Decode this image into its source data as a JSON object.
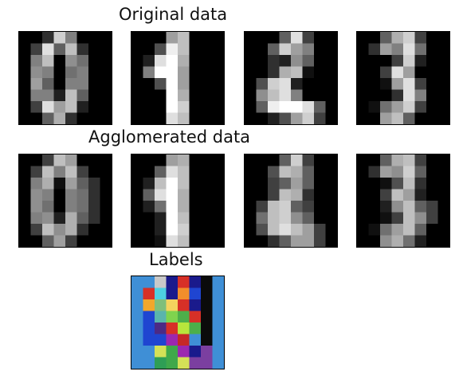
{
  "chart_data": {
    "type": "heatmap",
    "titles": {
      "original": "Original data",
      "agglomerated": "Agglomerated data",
      "labels": "Labels"
    },
    "grid_size": [
      8,
      8
    ],
    "colormap_digits": "gray",
    "original": [
      [
        [
          0,
          0,
          3,
          13,
          8,
          0,
          0,
          0
        ],
        [
          0,
          4,
          14,
          6,
          12,
          3,
          0,
          0
        ],
        [
          0,
          8,
          12,
          0,
          9,
          7,
          0,
          0
        ],
        [
          0,
          9,
          8,
          0,
          7,
          8,
          0,
          0
        ],
        [
          0,
          10,
          6,
          0,
          8,
          8,
          0,
          0
        ],
        [
          0,
          8,
          8,
          2,
          12,
          6,
          0,
          0
        ],
        [
          0,
          4,
          14,
          10,
          12,
          2,
          0,
          0
        ],
        [
          0,
          0,
          6,
          11,
          3,
          0,
          0,
          0
        ]
      ],
      [
        [
          0,
          0,
          0,
          10,
          12,
          0,
          0,
          0
        ],
        [
          0,
          0,
          5,
          15,
          12,
          0,
          0,
          0
        ],
        [
          0,
          2,
          14,
          16,
          11,
          0,
          0,
          0
        ],
        [
          0,
          8,
          16,
          16,
          10,
          0,
          0,
          0
        ],
        [
          0,
          0,
          5,
          16,
          10,
          0,
          0,
          0
        ],
        [
          0,
          0,
          0,
          16,
          11,
          0,
          0,
          0
        ],
        [
          0,
          0,
          0,
          16,
          13,
          0,
          0,
          0
        ],
        [
          0,
          0,
          0,
          14,
          12,
          0,
          0,
          0
        ]
      ],
      [
        [
          0,
          0,
          0,
          6,
          14,
          4,
          0,
          0
        ],
        [
          0,
          0,
          6,
          13,
          10,
          8,
          0,
          0
        ],
        [
          0,
          0,
          3,
          2,
          9,
          6,
          0,
          0
        ],
        [
          0,
          0,
          3,
          11,
          12,
          1,
          0,
          0
        ],
        [
          0,
          5,
          13,
          14,
          2,
          0,
          0,
          0
        ],
        [
          0,
          9,
          12,
          14,
          8,
          0,
          0,
          0
        ],
        [
          0,
          6,
          15,
          16,
          16,
          14,
          6,
          0
        ],
        [
          0,
          0,
          2,
          5,
          10,
          13,
          4,
          0
        ]
      ],
      [
        [
          0,
          0,
          6,
          11,
          13,
          4,
          0,
          0
        ],
        [
          0,
          3,
          10,
          8,
          14,
          7,
          0,
          0
        ],
        [
          0,
          0,
          0,
          4,
          13,
          2,
          0,
          0
        ],
        [
          0,
          0,
          4,
          14,
          10,
          0,
          0,
          0
        ],
        [
          0,
          0,
          1,
          10,
          14,
          4,
          0,
          0
        ],
        [
          0,
          0,
          0,
          3,
          14,
          8,
          0,
          0
        ],
        [
          0,
          1,
          7,
          10,
          13,
          4,
          0,
          0
        ],
        [
          0,
          0,
          10,
          12,
          6,
          0,
          0,
          0
        ]
      ]
    ],
    "agglomerated": [
      [
        [
          0,
          0,
          4,
          12,
          10,
          0,
          0,
          0
        ],
        [
          0,
          4,
          12,
          8,
          12,
          4,
          0,
          0
        ],
        [
          0,
          8,
          11,
          1,
          10,
          6,
          3,
          0
        ],
        [
          0,
          9,
          8,
          0,
          8,
          7,
          3,
          0
        ],
        [
          0,
          9,
          7,
          0,
          8,
          7,
          3,
          0
        ],
        [
          0,
          8,
          9,
          2,
          11,
          6,
          3,
          0
        ],
        [
          0,
          4,
          12,
          9,
          11,
          3,
          0,
          0
        ],
        [
          0,
          0,
          6,
          10,
          4,
          0,
          0,
          0
        ]
      ],
      [
        [
          0,
          0,
          0,
          10,
          11,
          0,
          0,
          0
        ],
        [
          0,
          0,
          6,
          14,
          12,
          0,
          0,
          0
        ],
        [
          0,
          2,
          12,
          16,
          12,
          0,
          0,
          0
        ],
        [
          0,
          6,
          14,
          16,
          11,
          0,
          0,
          0
        ],
        [
          0,
          2,
          7,
          16,
          11,
          0,
          0,
          0
        ],
        [
          0,
          0,
          2,
          16,
          12,
          0,
          0,
          0
        ],
        [
          0,
          0,
          2,
          16,
          13,
          0,
          0,
          0
        ],
        [
          0,
          0,
          1,
          14,
          12,
          0,
          0,
          0
        ]
      ],
      [
        [
          0,
          0,
          0,
          6,
          13,
          4,
          0,
          0
        ],
        [
          0,
          0,
          5,
          12,
          11,
          6,
          0,
          0
        ],
        [
          0,
          0,
          4,
          6,
          10,
          6,
          0,
          0
        ],
        [
          0,
          0,
          4,
          12,
          11,
          3,
          0,
          0
        ],
        [
          0,
          4,
          12,
          13,
          6,
          4,
          0,
          0
        ],
        [
          0,
          7,
          12,
          13,
          9,
          6,
          0,
          0
        ],
        [
          0,
          5,
          12,
          14,
          12,
          10,
          4,
          0
        ],
        [
          0,
          0,
          3,
          6,
          10,
          10,
          4,
          0
        ]
      ],
      [
        [
          0,
          0,
          6,
          11,
          12,
          4,
          0,
          0
        ],
        [
          0,
          3,
          10,
          9,
          13,
          6,
          0,
          0
        ],
        [
          0,
          0,
          1,
          5,
          12,
          3,
          0,
          0
        ],
        [
          0,
          0,
          4,
          12,
          10,
          2,
          0,
          0
        ],
        [
          0,
          0,
          2,
          9,
          12,
          6,
          4,
          0
        ],
        [
          0,
          0,
          1,
          4,
          12,
          9,
          4,
          0
        ],
        [
          0,
          1,
          7,
          10,
          12,
          6,
          0,
          0
        ],
        [
          0,
          0,
          9,
          11,
          7,
          2,
          0,
          0
        ]
      ]
    ],
    "labels_colors": [
      [
        "#3f8fd6",
        "#3f8fd6",
        "#c9c9c9",
        "#1a1a8c",
        "#d73027",
        "#1a1a8c",
        "#0b0b0b",
        "#3f8fd6"
      ],
      [
        "#3f8fd6",
        "#d73027",
        "#4dd0e1",
        "#1a1a8c",
        "#f28e2b",
        "#1f45d1",
        "#0b0b0b",
        "#3f8fd6"
      ],
      [
        "#3f8fd6",
        "#f2a72b",
        "#7fbf7b",
        "#f4d35e",
        "#d73027",
        "#1a1a8c",
        "#0b0b0b",
        "#3f8fd6"
      ],
      [
        "#3f8fd6",
        "#1f45d1",
        "#5ab4ac",
        "#7fd34e",
        "#4daf4a",
        "#d73027",
        "#0b0b0b",
        "#3f8fd6"
      ],
      [
        "#3f8fd6",
        "#1f45d1",
        "#4c2a85",
        "#d73027",
        "#b8e63c",
        "#4daf4a",
        "#0b0b0b",
        "#3f8fd6"
      ],
      [
        "#3f8fd6",
        "#1f45d1",
        "#1f45d1",
        "#9c27b0",
        "#c62828",
        "#3f8fd6",
        "#0b0b0b",
        "#3f8fd6"
      ],
      [
        "#3f8fd6",
        "#3f8fd6",
        "#d4e157",
        "#3fa84a",
        "#9c27b0",
        "#1a1a8c",
        "#7b3fa0",
        "#3f8fd6"
      ],
      [
        "#3f8fd6",
        "#3f8fd6",
        "#2e9e55",
        "#3fa84a",
        "#d4e157",
        "#7b3fa0",
        "#7b3fa0",
        "#3f8fd6"
      ]
    ]
  }
}
